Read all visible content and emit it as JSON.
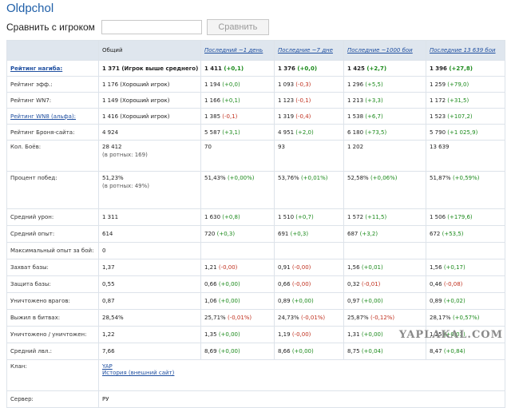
{
  "page": {
    "title": "Oldpchol"
  },
  "compare": {
    "label": "Сравнить с игроком",
    "input_value": "",
    "button_label": "Сравнить"
  },
  "header": {
    "col0": "",
    "total": "Общий",
    "day": "Последний ~1 день",
    "week": "Последние ~7 дне",
    "k1000": "Последние ~1000 бои",
    "all": "Последние 13 639 бои"
  },
  "rows": [
    {
      "label": "Рейтинг нагиба:",
      "label_style": "bold-link",
      "bold": true,
      "total": "1 371 (Игрок выше среднего)",
      "day": "1 411",
      "day_d": "(+0,1)",
      "day_s": "pos",
      "week": "1 376",
      "week_d": "(+0,0)",
      "week_s": "pos",
      "k1000": "1 425",
      "k1000_d": "(+2,7)",
      "k1000_s": "pos",
      "all": "1 396",
      "all_d": "(+27,8)",
      "all_s": "pos"
    },
    {
      "label": "Рейтинг эфф.:",
      "label_style": "",
      "total": "1 176 (Хороший игрок)",
      "day": "1 194",
      "day_d": "(+0,0)",
      "day_s": "pos",
      "week": "1 093",
      "week_d": "(-0,3)",
      "week_s": "neg",
      "k1000": "1 296",
      "k1000_d": "(+5,5)",
      "k1000_s": "pos",
      "all": "1 259",
      "all_d": "(+79,0)",
      "all_s": "pos"
    },
    {
      "label": "Рейтинг WN7:",
      "label_style": "",
      "total": "1 149 (Хороший игрок)",
      "day": "1 166",
      "day_d": "(+0,1)",
      "day_s": "pos",
      "week": "1 123",
      "week_d": "(-0,1)",
      "week_s": "neg",
      "k1000": "1 213",
      "k1000_d": "(+3,3)",
      "k1000_s": "pos",
      "all": "1 172",
      "all_d": "(+31,5)",
      "all_s": "pos"
    },
    {
      "label": "Рейтинг WN8 (альфа):",
      "label_style": "link",
      "total": "1 416 (Хороший игрок)",
      "day": "1 385",
      "day_d": "(-0,1)",
      "day_s": "neg",
      "week": "1 319",
      "week_d": "(-0,4)",
      "week_s": "neg",
      "k1000": "1 538",
      "k1000_d": "(+6,7)",
      "k1000_s": "pos",
      "all": "1 523",
      "all_d": "(+107,2)",
      "all_s": "pos"
    },
    {
      "label": "Рейтинг Броня-сайта:",
      "label_style": "",
      "total": "4 924",
      "day": "5 587",
      "day_d": "(+3,1)",
      "day_s": "pos",
      "week": "4 951",
      "week_d": "(+2,0)",
      "week_s": "pos",
      "k1000": "6 180",
      "k1000_d": "(+73,5)",
      "k1000_s": "pos",
      "all": "5 790",
      "all_d": "(+1 025,9)",
      "all_s": "pos"
    }
  ],
  "battles": {
    "label": "Кол. Боёв:",
    "total": "28 412",
    "total_sub": "(в ротных: 169)",
    "day": "70",
    "week": "93",
    "k1000": "1 202",
    "all": "13 639"
  },
  "winrate": {
    "label": "Процент побед:",
    "total": "51,23%",
    "total_sub": "(в ротных: 49%)",
    "day": "51,43%",
    "day_d": "(+0,00%)",
    "day_s": "pos",
    "week": "53,76%",
    "week_d": "(+0,01%)",
    "week_s": "pos",
    "k1000": "52,58%",
    "k1000_d": "(+0,06%)",
    "k1000_s": "pos",
    "all": "51,87%",
    "all_d": "(+0,59%)",
    "all_s": "pos"
  },
  "rows2": [
    {
      "label": "Средний урон:",
      "total": "1 311",
      "day": "1 630",
      "day_d": "(+0,8)",
      "day_s": "pos",
      "week": "1 510",
      "week_d": "(+0,7)",
      "week_s": "pos",
      "k1000": "1 572",
      "k1000_d": "(+11,5)",
      "k1000_s": "pos",
      "all": "1 506",
      "all_d": "(+179,6)",
      "all_s": "pos"
    },
    {
      "label": "Средний опыт:",
      "total": "614",
      "day": "720",
      "day_d": "(+0,3)",
      "day_s": "pos",
      "week": "691",
      "week_d": "(+0,3)",
      "week_s": "pos",
      "k1000": "687",
      "k1000_d": "(+3,2)",
      "k1000_s": "pos",
      "all": "672",
      "all_d": "(+53,5)",
      "all_s": "pos"
    },
    {
      "label": "Максимальный опыт за бой:",
      "total": "0",
      "day": "",
      "day_d": "",
      "day_s": "pos",
      "week": "",
      "week_d": "",
      "week_s": "pos",
      "k1000": "",
      "k1000_d": "",
      "k1000_s": "pos",
      "all": "",
      "all_d": "",
      "all_s": "pos"
    },
    {
      "label": "Захват базы:",
      "total": "1,37",
      "day": "1,21",
      "day_d": "(-0,00)",
      "day_s": "neg",
      "week": "0,91",
      "week_d": "(-0,00)",
      "week_s": "neg",
      "k1000": "1,56",
      "k1000_d": "(+0,01)",
      "k1000_s": "pos",
      "all": "1,56",
      "all_d": "(+0,17)",
      "all_s": "pos"
    },
    {
      "label": "Защита базы:",
      "total": "0,55",
      "day": "0,66",
      "day_d": "(+0,00)",
      "day_s": "pos",
      "week": "0,66",
      "week_d": "(-0,00)",
      "week_s": "neg",
      "k1000": "0,32",
      "k1000_d": "(-0,01)",
      "k1000_s": "neg",
      "all": "0,46",
      "all_d": "(-0,08)",
      "all_s": "neg"
    },
    {
      "label": "Уничтожено врагов:",
      "total": "0,87",
      "day": "1,06",
      "day_d": "(+0,00)",
      "day_s": "pos",
      "week": "0,89",
      "week_d": "(+0,00)",
      "week_s": "pos",
      "k1000": "0,97",
      "k1000_d": "(+0,00)",
      "k1000_s": "pos",
      "all": "0,89",
      "all_d": "(+0,02)",
      "all_s": "pos"
    },
    {
      "label": "Выжил в битвах:",
      "total": "28,54%",
      "day": "25,71%",
      "day_d": "(-0,01%)",
      "day_s": "neg",
      "week": "24,73%",
      "week_d": "(-0,01%)",
      "week_s": "neg",
      "k1000": "25,87%",
      "k1000_d": "(-0,12%)",
      "k1000_s": "neg",
      "all": "28,17%",
      "all_d": "(+0,57%)",
      "all_s": "pos"
    },
    {
      "label": "Уничтожено / уничтожен:",
      "total": "1,22",
      "day": "1,35",
      "day_d": "(+0,00)",
      "day_s": "pos",
      "week": "1,19",
      "week_d": "(-0,00)",
      "week_s": "neg",
      "k1000": "1,31",
      "k1000_d": "(+0,00)",
      "k1000_s": "pos",
      "all": "1,25",
      "all_d": "(+0,03)",
      "all_s": "pos"
    },
    {
      "label": "Средний лвл.:",
      "total": "7,66",
      "day": "8,69",
      "day_d": "(+0,00)",
      "day_s": "pos",
      "week": "8,66",
      "week_d": "(+0,00)",
      "week_s": "pos",
      "k1000": "8,75",
      "k1000_d": "(+0,04)",
      "k1000_s": "pos",
      "all": "8,47",
      "all_d": "(+0,84)",
      "all_s": "pos"
    }
  ],
  "clan": {
    "label": "Клан:",
    "name": "YAP",
    "history": "История (внешний сайт)"
  },
  "server": {
    "label": "Сервер:",
    "value": "РУ"
  },
  "watermark": "YAPLAKAL.COM"
}
